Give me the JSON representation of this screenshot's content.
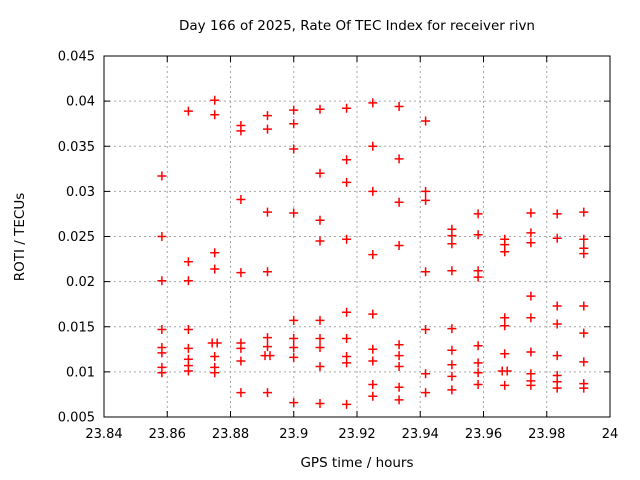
{
  "chart_data": {
    "type": "scatter",
    "title": "Day 166 of 2025, Rate Of TEC Index for receiver rivn",
    "xlabel": "GPS time / hours",
    "ylabel": "ROTI / TECUs",
    "xlim": [
      23.84,
      24
    ],
    "ylim": [
      0.005,
      0.045
    ],
    "grid": true,
    "grid_color": "#a6a6a6",
    "axis_color": "#000000",
    "x_ticks": [
      {
        "value": 23.84,
        "label": "23.84"
      },
      {
        "value": 23.86,
        "label": "23.86"
      },
      {
        "value": 23.88,
        "label": "23.88"
      },
      {
        "value": 23.9,
        "label": "23.9"
      },
      {
        "value": 23.92,
        "label": "23.92"
      },
      {
        "value": 23.94,
        "label": "23.94"
      },
      {
        "value": 23.96,
        "label": "23.96"
      },
      {
        "value": 23.98,
        "label": "23.98"
      },
      {
        "value": 24,
        "label": "24"
      }
    ],
    "y_ticks": [
      {
        "value": 0.005,
        "label": "0.005"
      },
      {
        "value": 0.01,
        "label": "0.01"
      },
      {
        "value": 0.015,
        "label": "0.015"
      },
      {
        "value": 0.02,
        "label": "0.02"
      },
      {
        "value": 0.025,
        "label": "0.025"
      },
      {
        "value": 0.03,
        "label": "0.03"
      },
      {
        "value": 0.035,
        "label": "0.035"
      },
      {
        "value": 0.04,
        "label": "0.04"
      },
      {
        "value": 0.045,
        "label": "0.045"
      }
    ],
    "series": [
      {
        "name": "ROTI",
        "marker": "plus",
        "color": "#ff0000",
        "points": [
          [
            23.8583,
            0.0317
          ],
          [
            23.8583,
            0.025
          ],
          [
            23.8583,
            0.0201
          ],
          [
            23.8583,
            0.0147
          ],
          [
            23.8583,
            0.0127
          ],
          [
            23.8583,
            0.0121
          ],
          [
            23.8583,
            0.0105
          ],
          [
            23.8583,
            0.0099
          ],
          [
            23.8667,
            0.0389
          ],
          [
            23.8667,
            0.0222
          ],
          [
            23.8667,
            0.0201
          ],
          [
            23.8667,
            0.0147
          ],
          [
            23.8667,
            0.0126
          ],
          [
            23.8667,
            0.0114
          ],
          [
            23.8667,
            0.0107
          ],
          [
            23.8667,
            0.0101
          ],
          [
            23.875,
            0.0401
          ],
          [
            23.875,
            0.0385
          ],
          [
            23.875,
            0.0232
          ],
          [
            23.875,
            0.0214
          ],
          [
            23.8742,
            0.0132
          ],
          [
            23.8758,
            0.0132
          ],
          [
            23.875,
            0.0117
          ],
          [
            23.875,
            0.0105
          ],
          [
            23.875,
            0.0099
          ],
          [
            23.8833,
            0.0373
          ],
          [
            23.8833,
            0.0367
          ],
          [
            23.8833,
            0.0291
          ],
          [
            23.8833,
            0.021
          ],
          [
            23.8833,
            0.0132
          ],
          [
            23.8833,
            0.0126
          ],
          [
            23.8833,
            0.0112
          ],
          [
            23.8833,
            0.0077
          ],
          [
            23.8917,
            0.0384
          ],
          [
            23.8917,
            0.0369
          ],
          [
            23.8917,
            0.0277
          ],
          [
            23.8917,
            0.0211
          ],
          [
            23.8917,
            0.0138
          ],
          [
            23.8917,
            0.0128
          ],
          [
            23.8909,
            0.0118
          ],
          [
            23.8925,
            0.0118
          ],
          [
            23.8917,
            0.0077
          ],
          [
            23.9,
            0.039
          ],
          [
            23.9,
            0.0375
          ],
          [
            23.9,
            0.0347
          ],
          [
            23.9,
            0.0276
          ],
          [
            23.9,
            0.0157
          ],
          [
            23.9,
            0.0137
          ],
          [
            23.9,
            0.0127
          ],
          [
            23.9,
            0.0116
          ],
          [
            23.9,
            0.0066
          ],
          [
            23.9083,
            0.0391
          ],
          [
            23.9083,
            0.032
          ],
          [
            23.9083,
            0.0268
          ],
          [
            23.9083,
            0.0245
          ],
          [
            23.9083,
            0.0157
          ],
          [
            23.9083,
            0.0137
          ],
          [
            23.9083,
            0.0127
          ],
          [
            23.9083,
            0.0106
          ],
          [
            23.9083,
            0.0065
          ],
          [
            23.9167,
            0.0392
          ],
          [
            23.9167,
            0.0335
          ],
          [
            23.9167,
            0.031
          ],
          [
            23.9167,
            0.0247
          ],
          [
            23.9167,
            0.0166
          ],
          [
            23.9167,
            0.0137
          ],
          [
            23.9167,
            0.0117
          ],
          [
            23.9167,
            0.011
          ],
          [
            23.9167,
            0.0064
          ],
          [
            23.925,
            0.0398
          ],
          [
            23.925,
            0.035
          ],
          [
            23.925,
            0.03
          ],
          [
            23.925,
            0.023
          ],
          [
            23.925,
            0.0164
          ],
          [
            23.925,
            0.0125
          ],
          [
            23.925,
            0.0112
          ],
          [
            23.925,
            0.0086
          ],
          [
            23.925,
            0.0073
          ],
          [
            23.9333,
            0.0394
          ],
          [
            23.9333,
            0.0336
          ],
          [
            23.9333,
            0.0288
          ],
          [
            23.9333,
            0.024
          ],
          [
            23.9333,
            0.013
          ],
          [
            23.9333,
            0.0118
          ],
          [
            23.9333,
            0.0106
          ],
          [
            23.9333,
            0.0083
          ],
          [
            23.9333,
            0.0069
          ],
          [
            23.9417,
            0.0378
          ],
          [
            23.9417,
            0.03
          ],
          [
            23.9417,
            0.029
          ],
          [
            23.9417,
            0.0211
          ],
          [
            23.9417,
            0.0147
          ],
          [
            23.9417,
            0.0098
          ],
          [
            23.9417,
            0.0077
          ],
          [
            23.95,
            0.0258
          ],
          [
            23.95,
            0.0251
          ],
          [
            23.95,
            0.0242
          ],
          [
            23.95,
            0.0212
          ],
          [
            23.95,
            0.0148
          ],
          [
            23.95,
            0.0124
          ],
          [
            23.95,
            0.0108
          ],
          [
            23.95,
            0.0095
          ],
          [
            23.95,
            0.008
          ],
          [
            23.9583,
            0.0275
          ],
          [
            23.9583,
            0.0252
          ],
          [
            23.9583,
            0.0212
          ],
          [
            23.9583,
            0.0205
          ],
          [
            23.9583,
            0.0129
          ],
          [
            23.9583,
            0.011
          ],
          [
            23.9583,
            0.0099
          ],
          [
            23.9583,
            0.0086
          ],
          [
            23.9667,
            0.0247
          ],
          [
            23.9667,
            0.0241
          ],
          [
            23.9667,
            0.0233
          ],
          [
            23.9667,
            0.016
          ],
          [
            23.9667,
            0.0151
          ],
          [
            23.9667,
            0.012
          ],
          [
            23.9659,
            0.0101
          ],
          [
            23.9675,
            0.0101
          ],
          [
            23.9667,
            0.0085
          ],
          [
            23.975,
            0.0276
          ],
          [
            23.975,
            0.0254
          ],
          [
            23.975,
            0.0243
          ],
          [
            23.975,
            0.0184
          ],
          [
            23.975,
            0.016
          ],
          [
            23.975,
            0.0122
          ],
          [
            23.975,
            0.0098
          ],
          [
            23.975,
            0.009
          ],
          [
            23.975,
            0.0085
          ],
          [
            23.9833,
            0.0275
          ],
          [
            23.9833,
            0.0248
          ],
          [
            23.9833,
            0.0173
          ],
          [
            23.9833,
            0.0153
          ],
          [
            23.9833,
            0.0118
          ],
          [
            23.9833,
            0.0096
          ],
          [
            23.9833,
            0.0089
          ],
          [
            23.9833,
            0.0082
          ],
          [
            23.9917,
            0.0277
          ],
          [
            23.9917,
            0.0247
          ],
          [
            23.9917,
            0.0237
          ],
          [
            23.9917,
            0.0231
          ],
          [
            23.9917,
            0.0173
          ],
          [
            23.9917,
            0.0143
          ],
          [
            23.9917,
            0.0111
          ],
          [
            23.9917,
            0.0087
          ],
          [
            23.9917,
            0.0082
          ]
        ]
      }
    ]
  }
}
